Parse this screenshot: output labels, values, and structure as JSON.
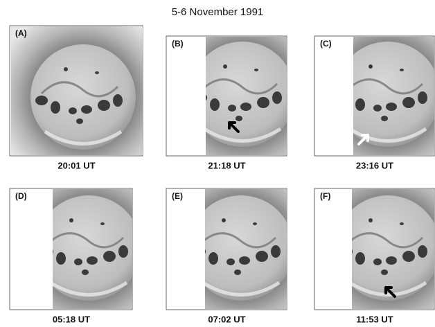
{
  "title": "5-6 November 1991",
  "panels": [
    {
      "label": "(A)",
      "time": "20:01 UT"
    },
    {
      "label": "(B)",
      "time": "21:18 UT"
    },
    {
      "label": "(C)",
      "time": "23:16 UT"
    },
    {
      "label": "(D)",
      "time": "05:18 UT"
    },
    {
      "label": "(E)",
      "time": "07:02 UT"
    },
    {
      "label": "(F)",
      "time": "11:53 UT"
    }
  ]
}
